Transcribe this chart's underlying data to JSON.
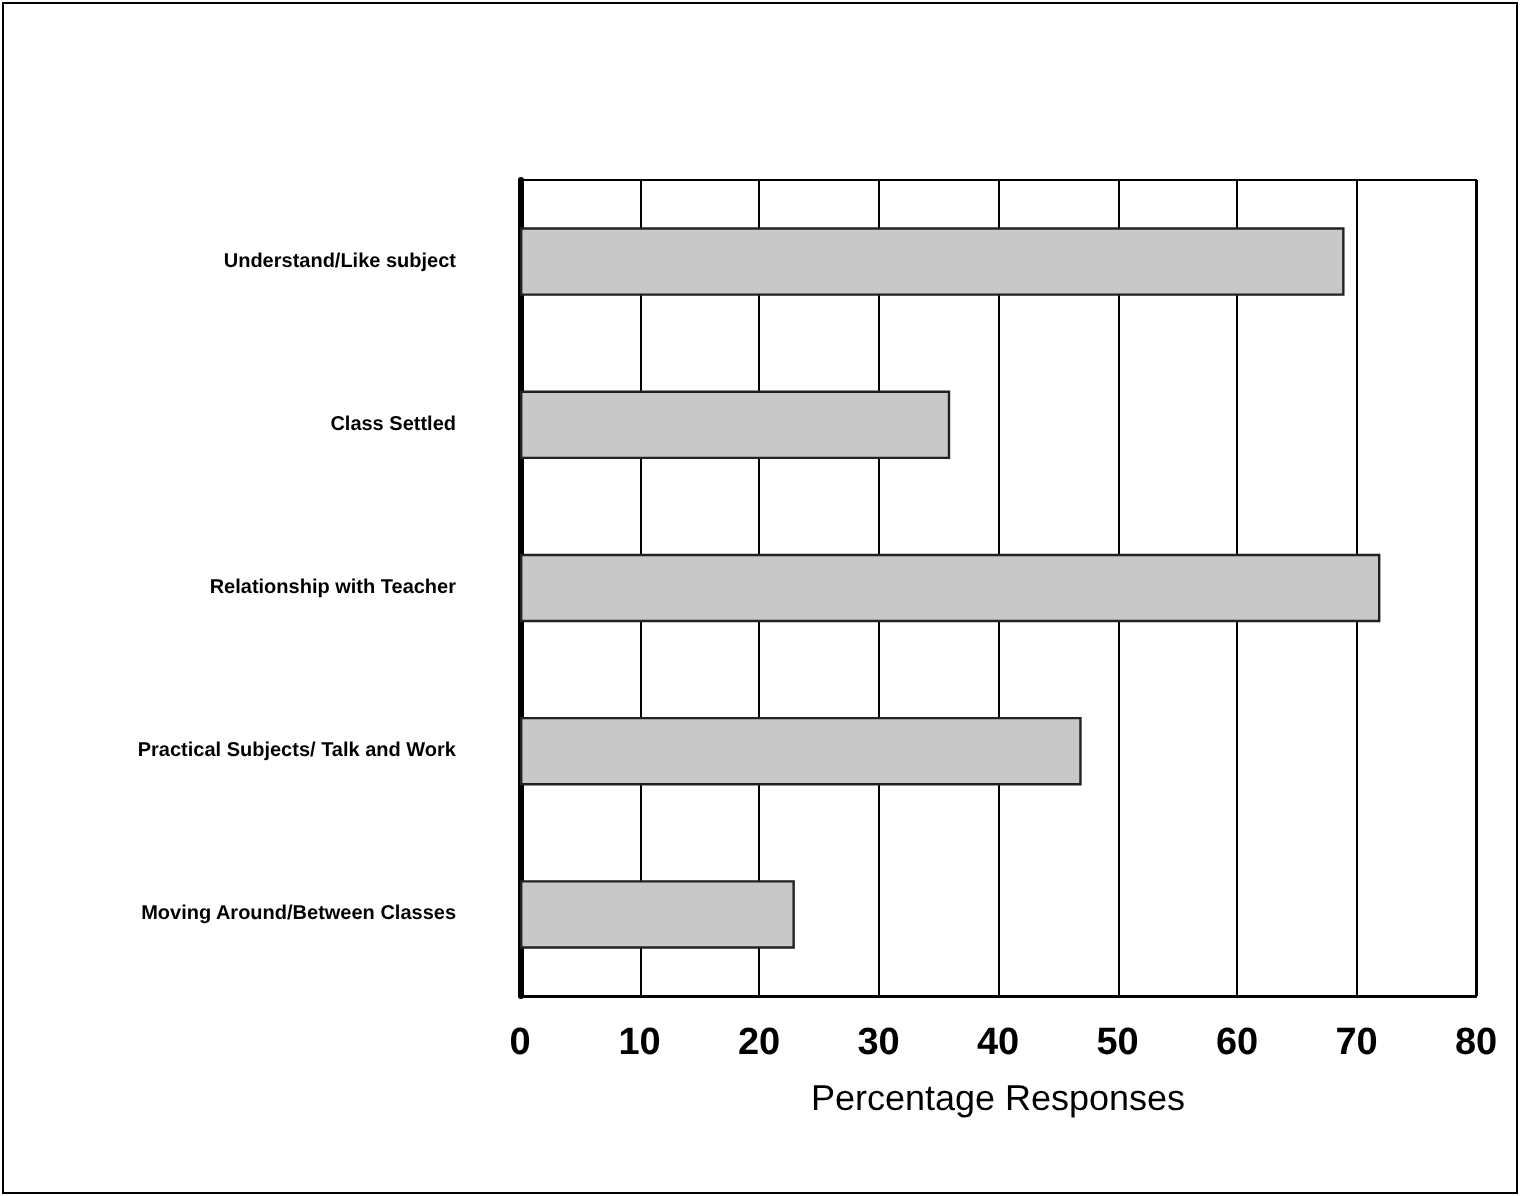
{
  "chart_data": {
    "type": "bar",
    "orientation": "horizontal",
    "categories": [
      "Understand/Like subject",
      "Class Settled",
      "Relationship with Teacher",
      "Practical Subjects/ Talk and Work",
      "Moving Around/Between Classes"
    ],
    "values": [
      69,
      36,
      72,
      47,
      23
    ],
    "color": "#c8c8c8",
    "xlim": [
      0,
      80
    ],
    "xticks": [
      0,
      10,
      20,
      30,
      40,
      50,
      60,
      70,
      80
    ],
    "xlabel": "Percentage Responses",
    "grid": "x"
  }
}
